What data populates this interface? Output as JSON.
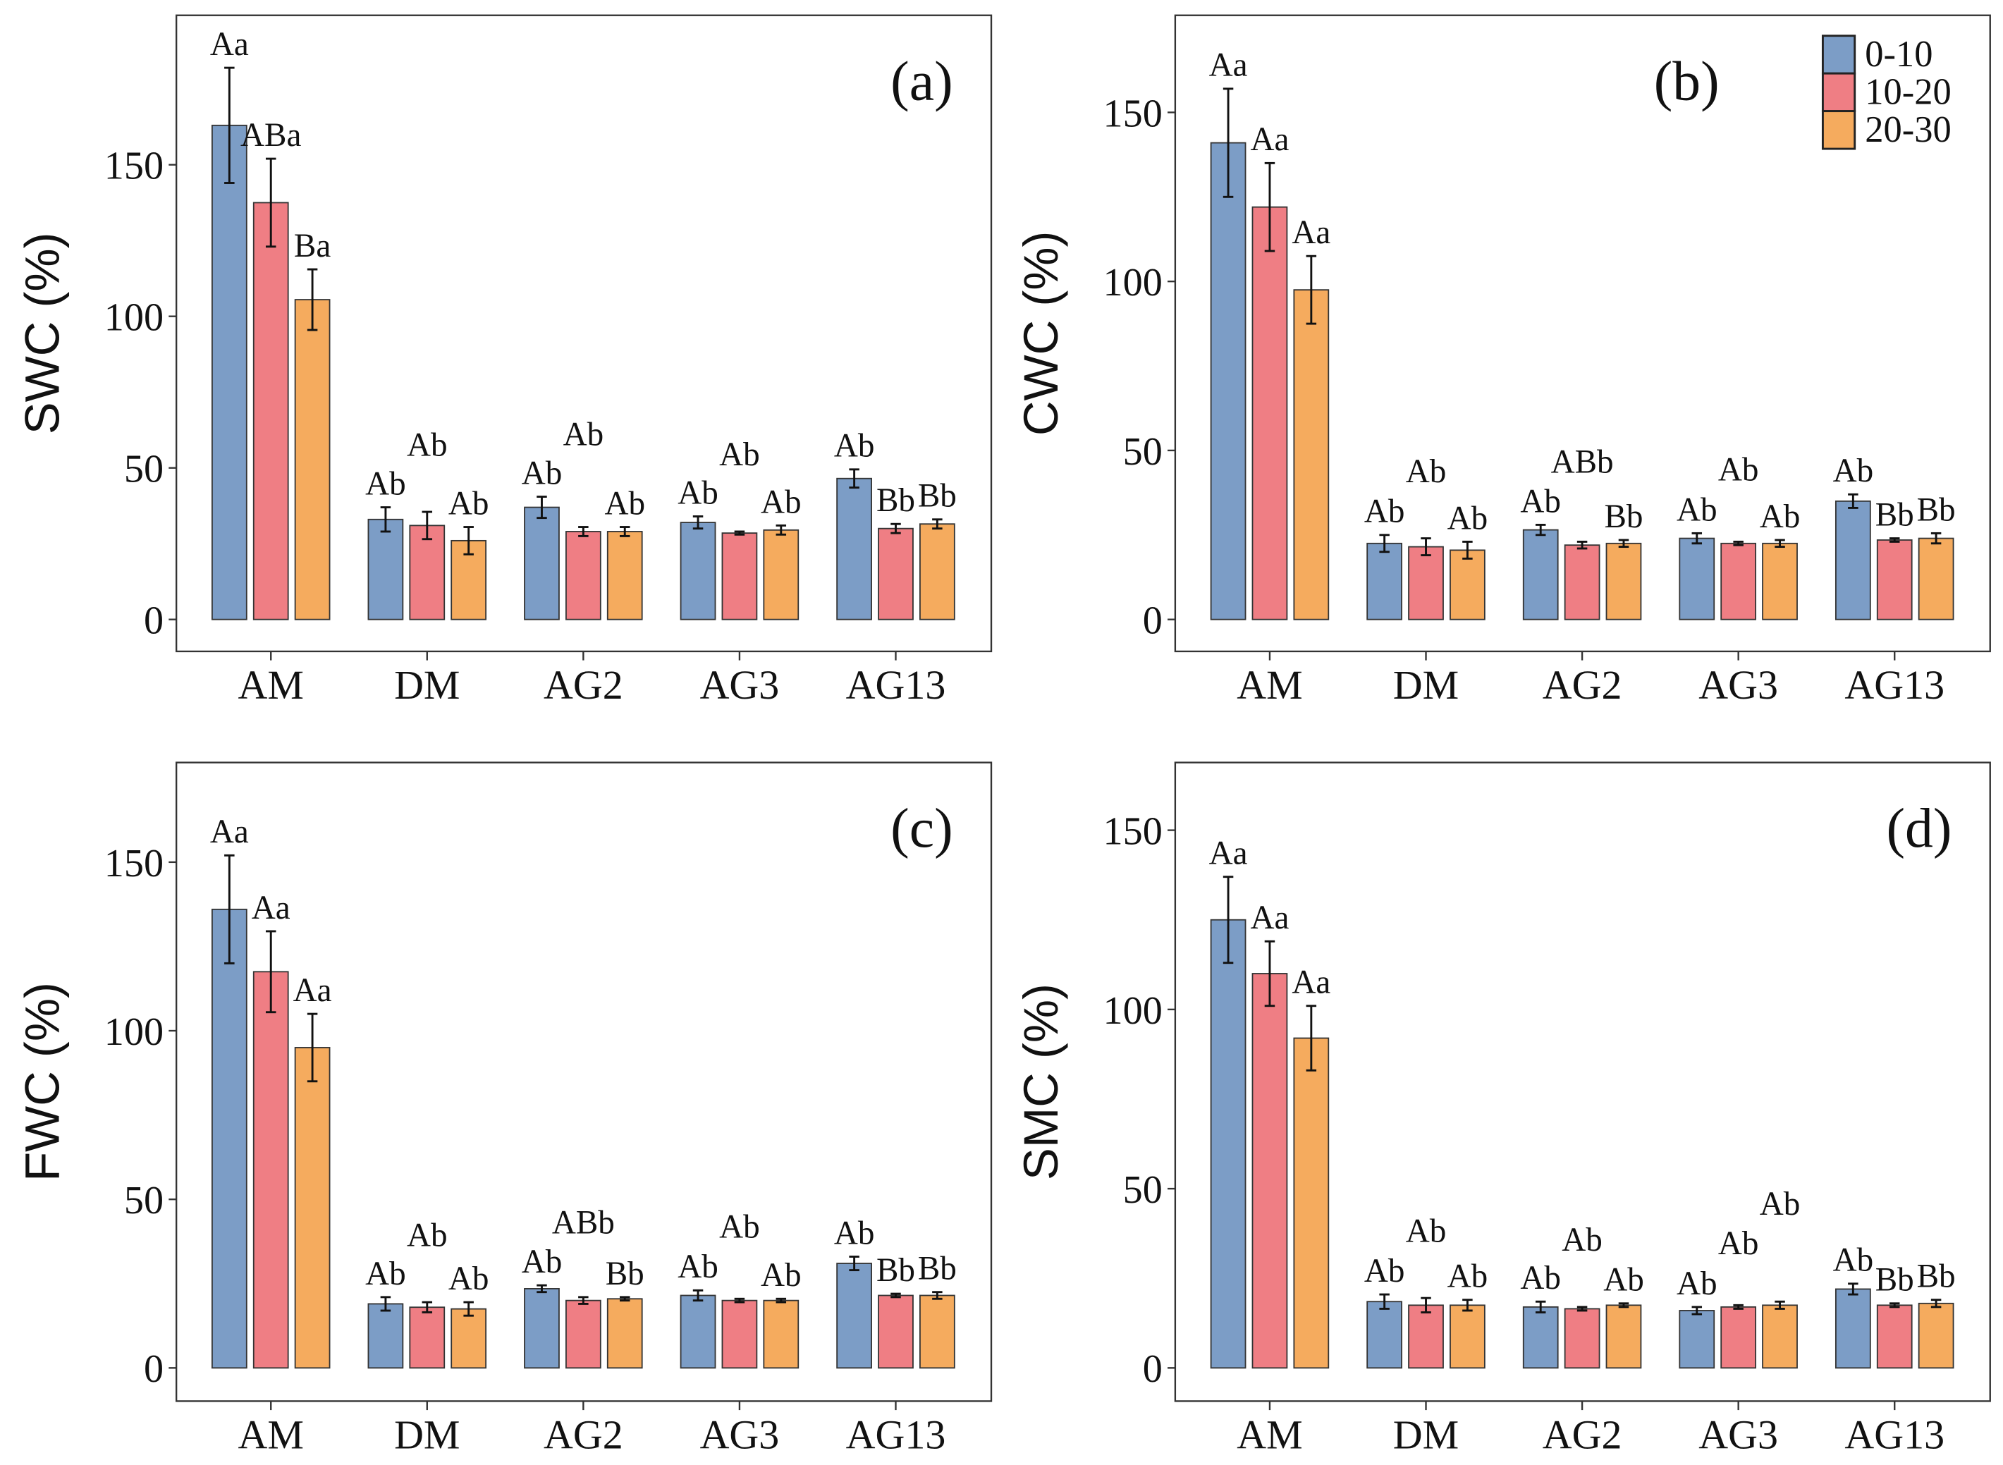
{
  "chart_data": [
    {
      "type": "bar",
      "panel_label": "(a)",
      "ylabel": "SWC (%)",
      "categories": [
        "AM",
        "DM",
        "AG2",
        "AG3",
        "AG13"
      ],
      "yticks": [
        0,
        50,
        100,
        150
      ],
      "ylim": [
        -10,
        200
      ],
      "series": [
        {
          "name": "0-10",
          "values": [
            163,
            33,
            37,
            32,
            46.5
          ],
          "errors": [
            19,
            4,
            3.5,
            2,
            3
          ],
          "labels": [
            "Aa",
            "Ab",
            "Ab",
            "Ab",
            "Ab"
          ]
        },
        {
          "name": "10-20",
          "values": [
            137.5,
            31,
            29,
            28.5,
            30
          ],
          "errors": [
            14.5,
            4.5,
            1.5,
            0.5,
            1.5
          ],
          "labels": [
            "ABa",
            "Ab",
            "Ab",
            "Ab",
            "Bb"
          ]
        },
        {
          "name": "20-30",
          "values": [
            105.5,
            26,
            29,
            29.5,
            31.5
          ],
          "errors": [
            10,
            4.5,
            1.5,
            1.5,
            1.5
          ],
          "labels": [
            "Ba",
            "Ab",
            "Ab",
            "Ab",
            "Bb"
          ]
        }
      ]
    },
    {
      "type": "bar",
      "panel_label": "(b)",
      "ylabel": "CWC (%)",
      "categories": [
        "AM",
        "DM",
        "AG2",
        "AG3",
        "AG13"
      ],
      "yticks": [
        0,
        50,
        100,
        150
      ],
      "ylim": [
        -9,
        179
      ],
      "legend": {
        "position": "top-right",
        "entries": [
          "0-10",
          "10-20",
          "20-30"
        ]
      },
      "series": [
        {
          "name": "0-10",
          "values": [
            141,
            22.5,
            26.5,
            24,
            35
          ],
          "errors": [
            16,
            2.5,
            1.5,
            1.5,
            2
          ],
          "labels": [
            "Aa",
            "Ab",
            "Ab",
            "Ab",
            "Ab"
          ]
        },
        {
          "name": "10-20",
          "values": [
            122,
            21.5,
            22,
            22.5,
            23.5
          ],
          "errors": [
            13,
            2.5,
            1,
            0.5,
            0.5
          ],
          "labels": [
            "Aa",
            "Ab",
            "ABb",
            "Ab",
            "Bb"
          ]
        },
        {
          "name": "20-30",
          "values": [
            97.5,
            20.5,
            22.5,
            22.5,
            24
          ],
          "errors": [
            10,
            2.5,
            1,
            1,
            1.5
          ],
          "labels": [
            "Aa",
            "Ab",
            "Bb",
            "Ab",
            "Bb"
          ]
        }
      ]
    },
    {
      "type": "bar",
      "panel_label": "(c)",
      "ylabel": "FWC (%)",
      "categories": [
        "AM",
        "DM",
        "AG2",
        "AG3",
        "AG13"
      ],
      "yticks": [
        0,
        50,
        100,
        150
      ],
      "ylim": [
        -10,
        179
      ],
      "series": [
        {
          "name": "0-10",
          "values": [
            136,
            19,
            23.5,
            21.5,
            31
          ],
          "errors": [
            16,
            2,
            1,
            1.5,
            2
          ],
          "labels": [
            "Aa",
            "Ab",
            "Ab",
            "Ab",
            "Ab"
          ]
        },
        {
          "name": "10-20",
          "values": [
            117.5,
            18,
            20,
            20,
            21.5
          ],
          "errors": [
            12,
            1.5,
            1,
            0.5,
            0.5
          ],
          "labels": [
            "Aa",
            "Ab",
            "ABb",
            "Ab",
            "Bb"
          ]
        },
        {
          "name": "20-30",
          "values": [
            95,
            17.5,
            20.5,
            20,
            21.5
          ],
          "errors": [
            10,
            2,
            0.5,
            0.5,
            1
          ],
          "labels": [
            "Aa",
            "Ab",
            "Bb",
            "Ab",
            "Bb"
          ]
        }
      ]
    },
    {
      "type": "bar",
      "panel_label": "(d)",
      "ylabel": "SMC (%)",
      "categories": [
        "AM",
        "DM",
        "AG2",
        "AG3",
        "AG13"
      ],
      "yticks": [
        0,
        50,
        100,
        150
      ],
      "ylim": [
        -9,
        168
      ],
      "series": [
        {
          "name": "0-10",
          "values": [
            125,
            18.5,
            17,
            16,
            22
          ],
          "errors": [
            12,
            2,
            1.5,
            1,
            1.5
          ],
          "labels": [
            "Aa",
            "Ab",
            "Ab",
            "Ab",
            "Ab"
          ]
        },
        {
          "name": "10-20",
          "values": [
            110,
            17.5,
            16.5,
            17,
            17.5
          ],
          "errors": [
            9,
            2,
            0.5,
            0.5,
            0.5
          ],
          "labels": [
            "Aa",
            "Ab",
            "Ab",
            "Ab",
            "Bb"
          ]
        },
        {
          "name": "20-30",
          "values": [
            92,
            17.5,
            17.5,
            17.5,
            18
          ],
          "errors": [
            9,
            1.5,
            0.5,
            1,
            1
          ],
          "labels": [
            "Aa",
            "Ab",
            "Ab",
            "Ab",
            "Bb"
          ]
        }
      ]
    }
  ],
  "colors": {
    "0-10": "#7c9dc6",
    "10-20": "#ef7e84",
    "20-30": "#f5ab5e",
    "axis": "#333333"
  }
}
